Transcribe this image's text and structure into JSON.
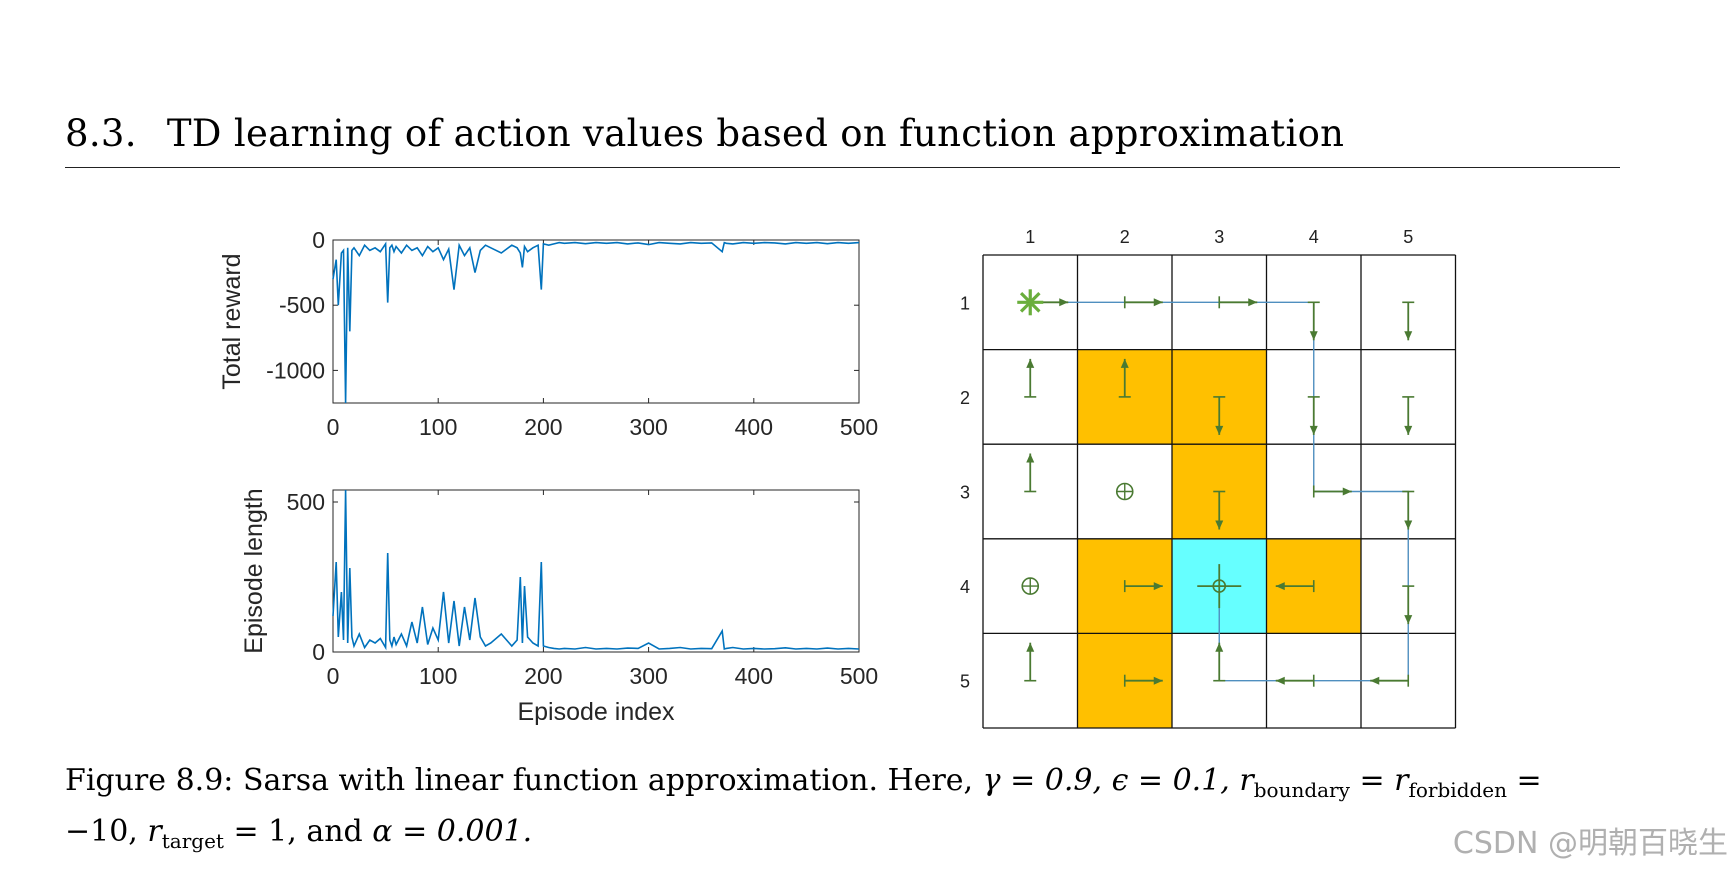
{
  "header": {
    "section_number": "8.3.",
    "title": "TD learning of action values based on function approximation"
  },
  "chart_data": [
    {
      "type": "line",
      "title": "",
      "ylabel": "Total reward",
      "xlabel": "",
      "xlim": [
        0,
        500
      ],
      "ylim": [
        -1250,
        0
      ],
      "xticks": [
        "0",
        "100",
        "200",
        "300",
        "400",
        "500"
      ],
      "yticks": [
        "0",
        "-500",
        "-1000"
      ],
      "color": "#0072bd",
      "series": [
        {
          "name": "Total reward",
          "x": [
            0,
            3,
            5,
            8,
            10,
            12,
            14,
            16,
            18,
            20,
            25,
            30,
            35,
            40,
            45,
            50,
            52,
            54,
            56,
            58,
            60,
            65,
            70,
            75,
            80,
            85,
            90,
            95,
            100,
            105,
            110,
            115,
            120,
            125,
            130,
            135,
            140,
            145,
            150,
            160,
            170,
            175,
            178,
            180,
            182,
            185,
            190,
            195,
            198,
            200,
            205,
            210,
            215,
            220,
            230,
            240,
            250,
            260,
            270,
            280,
            290,
            300,
            310,
            320,
            330,
            340,
            350,
            360,
            370,
            372,
            374,
            380,
            390,
            400,
            410,
            420,
            430,
            440,
            450,
            460,
            470,
            480,
            490,
            500
          ],
          "values": [
            -300,
            -150,
            -500,
            -100,
            -80,
            -1250,
            -60,
            -700,
            -80,
            -60,
            -120,
            -40,
            -80,
            -60,
            -90,
            -30,
            -480,
            -60,
            -40,
            -90,
            -50,
            -100,
            -40,
            -80,
            -60,
            -120,
            -50,
            -90,
            -60,
            -150,
            -70,
            -380,
            -40,
            -120,
            -60,
            -250,
            -80,
            -40,
            -60,
            -100,
            -40,
            -60,
            -100,
            -210,
            -50,
            -90,
            -60,
            -40,
            -380,
            -30,
            -40,
            -30,
            -20,
            -25,
            -20,
            -28,
            -20,
            -25,
            -20,
            -30,
            -22,
            -35,
            -20,
            -25,
            -30,
            -20,
            -25,
            -22,
            -90,
            -20,
            -25,
            -30,
            -20,
            -25,
            -20,
            -22,
            -30,
            -20,
            -25,
            -20,
            -28,
            -20,
            -25,
            -20
          ]
        }
      ]
    },
    {
      "type": "line",
      "title": "",
      "ylabel": "Episode length",
      "xlabel": "Episode index",
      "xlim": [
        0,
        500
      ],
      "ylim": [
        0,
        540
      ],
      "xticks": [
        "0",
        "100",
        "200",
        "300",
        "400",
        "500"
      ],
      "yticks": [
        "500",
        "0"
      ],
      "color": "#0072bd",
      "series": [
        {
          "name": "Episode length",
          "x": [
            0,
            3,
            5,
            8,
            10,
            12,
            14,
            16,
            18,
            20,
            25,
            30,
            35,
            40,
            45,
            50,
            52,
            54,
            56,
            58,
            60,
            65,
            70,
            75,
            80,
            85,
            90,
            95,
            100,
            105,
            110,
            115,
            120,
            125,
            130,
            135,
            140,
            145,
            150,
            160,
            170,
            175,
            178,
            180,
            182,
            185,
            190,
            195,
            198,
            200,
            205,
            210,
            215,
            220,
            230,
            240,
            250,
            260,
            270,
            280,
            290,
            300,
            310,
            320,
            330,
            340,
            350,
            360,
            370,
            372,
            374,
            380,
            390,
            400,
            410,
            420,
            430,
            440,
            450,
            460,
            470,
            480,
            490,
            500
          ],
          "values": [
            120,
            300,
            50,
            200,
            40,
            540,
            30,
            280,
            50,
            20,
            60,
            15,
            40,
            30,
            45,
            15,
            330,
            40,
            20,
            50,
            25,
            60,
            20,
            100,
            30,
            150,
            25,
            80,
            40,
            200,
            30,
            170,
            20,
            150,
            40,
            180,
            50,
            20,
            30,
            60,
            20,
            40,
            250,
            30,
            220,
            50,
            30,
            20,
            300,
            20,
            15,
            12,
            10,
            12,
            10,
            15,
            10,
            12,
            10,
            13,
            12,
            30,
            10,
            12,
            15,
            10,
            12,
            11,
            70,
            10,
            12,
            15,
            10,
            12,
            10,
            11,
            14,
            10,
            12,
            10,
            13,
            10,
            12,
            10
          ]
        }
      ]
    }
  ],
  "grid": {
    "col_labels": [
      "1",
      "2",
      "3",
      "4",
      "5"
    ],
    "row_labels": [
      "1",
      "2",
      "3",
      "4",
      "5"
    ],
    "forbidden": [
      [
        2,
        2
      ],
      [
        2,
        3
      ],
      [
        3,
        3
      ],
      [
        4,
        2
      ],
      [
        4,
        4
      ],
      [
        5,
        2
      ]
    ],
    "target": [
      4,
      3
    ],
    "start": [
      1,
      1
    ],
    "circle_cells": [
      [
        3,
        2
      ],
      [
        4,
        1
      ]
    ],
    "path": [
      [
        1,
        1
      ],
      [
        1,
        2
      ],
      [
        1,
        3
      ],
      [
        1,
        4
      ],
      [
        2,
        4
      ],
      [
        3,
        4
      ],
      [
        3,
        5
      ],
      [
        4,
        5
      ],
      [
        5,
        5
      ],
      [
        5,
        4
      ],
      [
        5,
        3
      ],
      [
        4,
        3
      ]
    ],
    "colors": {
      "forbidden": "#ffc000",
      "target": "#66ffff",
      "arrow": "#4a7a32",
      "path": "#4f8fbf",
      "start": "#6aae3c"
    },
    "policy": [
      [
        "right",
        "right",
        "right",
        "down",
        "down"
      ],
      [
        "up",
        "up",
        "down",
        "down",
        "down"
      ],
      [
        "up",
        "stay",
        "down",
        "right",
        "down"
      ],
      [
        "stay",
        "right",
        "stay",
        "left",
        "down"
      ],
      [
        "up",
        "right",
        "up",
        "left",
        "left"
      ]
    ]
  },
  "caption": {
    "prefix": "Figure 8.9:",
    "text": "Sarsa with linear function approximation.",
    "here": "Here,",
    "gamma": "γ = 0.9,",
    "epsilon": "ϵ = 0.1,",
    "r": "r",
    "r_boundary_sub": "boundary",
    "eq": " = ",
    "r_forbidden_sub": "forbidden",
    "eq_end": " =",
    "line2_val": "−10,",
    "r_target_sub": "target",
    "line2_rest": "= 1, and",
    "alpha": "α = 0.001."
  },
  "watermark": "CSDN @明朝百晓生"
}
